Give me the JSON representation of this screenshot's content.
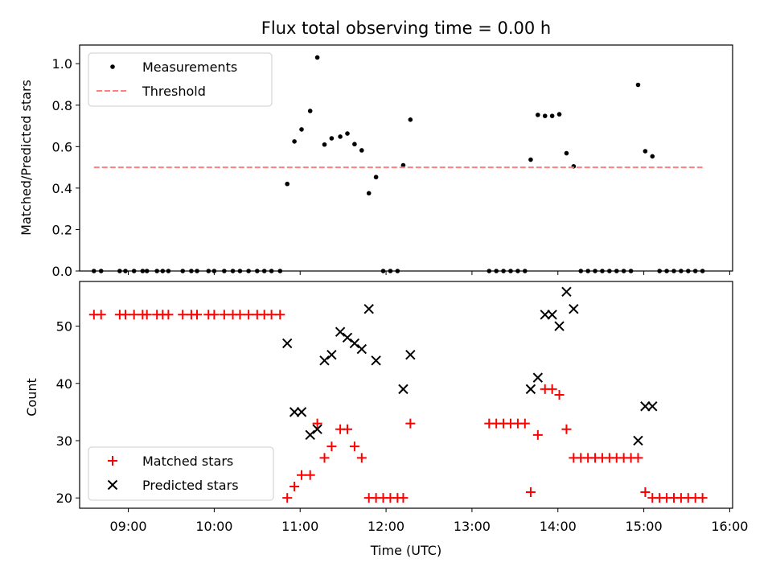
{
  "chart_data": [
    {
      "type": "scatter",
      "title": "Flux total observing time = 0.00 h",
      "xlabel": "",
      "ylabel": "Matched/Predicted stars",
      "xlim": [
        "08:26",
        "16:02"
      ],
      "ylim": [
        0,
        1.09
      ],
      "yticks": [
        "0.0",
        "0.2",
        "0.4",
        "0.6",
        "0.8",
        "1.0"
      ],
      "legend_position": "upper-left",
      "legend": [
        "Measurements",
        "Threshold"
      ],
      "series": [
        {
          "name": "Measurements",
          "marker": "dot",
          "color": "#000000",
          "points": [
            [
              "08:36",
              0
            ],
            [
              "08:41",
              0
            ],
            [
              "08:54",
              0
            ],
            [
              "08:58",
              0
            ],
            [
              "09:04",
              0
            ],
            [
              "09:10",
              0
            ],
            [
              "09:13",
              0
            ],
            [
              "09:20",
              0
            ],
            [
              "09:24",
              0
            ],
            [
              "09:28",
              0
            ],
            [
              "09:38",
              0
            ],
            [
              "09:44",
              0
            ],
            [
              "09:48",
              0
            ],
            [
              "09:56",
              0
            ],
            [
              "10:00",
              0
            ],
            [
              "10:07",
              0
            ],
            [
              "10:13",
              0
            ],
            [
              "10:18",
              0
            ],
            [
              "10:24",
              0
            ],
            [
              "10:30",
              0
            ],
            [
              "10:35",
              0
            ],
            [
              "10:40",
              0
            ],
            [
              "10:46",
              0
            ],
            [
              "10:51",
              0.42
            ],
            [
              "10:56",
              0.625
            ],
            [
              "11:01",
              0.683
            ],
            [
              "11:07",
              0.772
            ],
            [
              "11:12",
              1.03
            ],
            [
              "11:17",
              0.61
            ],
            [
              "11:22",
              0.64
            ],
            [
              "11:28",
              0.648
            ],
            [
              "11:33",
              0.663
            ],
            [
              "11:38",
              0.612
            ],
            [
              "11:43",
              0.582
            ],
            [
              "11:48",
              0.375
            ],
            [
              "11:53",
              0.453
            ],
            [
              "11:58",
              0
            ],
            [
              "12:03",
              0
            ],
            [
              "12:08",
              0
            ],
            [
              "12:12",
              0.51
            ],
            [
              "12:17",
              0.73
            ],
            [
              "13:12",
              0
            ],
            [
              "13:17",
              0
            ],
            [
              "13:22",
              0
            ],
            [
              "13:27",
              0
            ],
            [
              "13:32",
              0
            ],
            [
              "13:37",
              0
            ],
            [
              "13:41",
              0.537
            ],
            [
              "13:46",
              0.753
            ],
            [
              "13:51",
              0.748
            ],
            [
              "13:56",
              0.748
            ],
            [
              "14:01",
              0.756
            ],
            [
              "14:06",
              0.568
            ],
            [
              "14:11",
              0.505
            ],
            [
              "14:16",
              0
            ],
            [
              "14:21",
              0
            ],
            [
              "14:26",
              0
            ],
            [
              "14:31",
              0
            ],
            [
              "14:36",
              0
            ],
            [
              "14:41",
              0
            ],
            [
              "14:46",
              0
            ],
            [
              "14:51",
              0
            ],
            [
              "14:56",
              0.898
            ],
            [
              "15:01",
              0.578
            ],
            [
              "15:06",
              0.553
            ],
            [
              "15:11",
              0
            ],
            [
              "15:16",
              0
            ],
            [
              "15:21",
              0
            ],
            [
              "15:26",
              0
            ],
            [
              "15:31",
              0
            ],
            [
              "15:36",
              0
            ],
            [
              "15:41",
              0
            ]
          ]
        },
        {
          "name": "Threshold",
          "style": "dashed-line",
          "color": "#ff7f7f",
          "points": [
            [
              "08:36",
              0.5
            ],
            [
              "15:41",
              0.5
            ]
          ]
        }
      ]
    },
    {
      "type": "scatter",
      "title": "",
      "xlabel": "Time (UTC)",
      "ylabel": "Count",
      "xlim": [
        "08:26",
        "16:02"
      ],
      "ylim": [
        18.2,
        57.8
      ],
      "xticks": [
        "09:00",
        "10:00",
        "11:00",
        "12:00",
        "13:00",
        "14:00",
        "15:00",
        "16:00"
      ],
      "yticks": [
        "20",
        "30",
        "40",
        "50"
      ],
      "legend_position": "lower-left",
      "legend": [
        "Matched stars",
        "Predicted stars"
      ],
      "series": [
        {
          "name": "Matched stars",
          "marker": "plus",
          "color": "#ff0000",
          "points": [
            [
              "08:36",
              52
            ],
            [
              "08:41",
              52
            ],
            [
              "08:54",
              52
            ],
            [
              "08:58",
              52
            ],
            [
              "09:04",
              52
            ],
            [
              "09:10",
              52
            ],
            [
              "09:13",
              52
            ],
            [
              "09:20",
              52
            ],
            [
              "09:24",
              52
            ],
            [
              "09:28",
              52
            ],
            [
              "09:38",
              52
            ],
            [
              "09:44",
              52
            ],
            [
              "09:48",
              52
            ],
            [
              "09:56",
              52
            ],
            [
              "10:00",
              52
            ],
            [
              "10:07",
              52
            ],
            [
              "10:13",
              52
            ],
            [
              "10:18",
              52
            ],
            [
              "10:24",
              52
            ],
            [
              "10:30",
              52
            ],
            [
              "10:35",
              52
            ],
            [
              "10:40",
              52
            ],
            [
              "10:46",
              52
            ],
            [
              "10:51",
              20
            ],
            [
              "10:56",
              22
            ],
            [
              "11:01",
              24
            ],
            [
              "11:07",
              24
            ],
            [
              "11:12",
              33
            ],
            [
              "11:17",
              27
            ],
            [
              "11:22",
              29
            ],
            [
              "11:28",
              32
            ],
            [
              "11:33",
              32
            ],
            [
              "11:38",
              29
            ],
            [
              "11:43",
              27
            ],
            [
              "11:48",
              20
            ],
            [
              "11:53",
              20
            ],
            [
              "11:58",
              20
            ],
            [
              "12:03",
              20
            ],
            [
              "12:08",
              20
            ],
            [
              "12:12",
              20
            ],
            [
              "12:17",
              33
            ],
            [
              "13:12",
              33
            ],
            [
              "13:17",
              33
            ],
            [
              "13:22",
              33
            ],
            [
              "13:27",
              33
            ],
            [
              "13:32",
              33
            ],
            [
              "13:37",
              33
            ],
            [
              "13:41",
              21
            ],
            [
              "13:46",
              31
            ],
            [
              "13:51",
              39
            ],
            [
              "13:56",
              39
            ],
            [
              "14:01",
              38
            ],
            [
              "14:06",
              32
            ],
            [
              "14:11",
              27
            ],
            [
              "14:16",
              27
            ],
            [
              "14:21",
              27
            ],
            [
              "14:26",
              27
            ],
            [
              "14:31",
              27
            ],
            [
              "14:36",
              27
            ],
            [
              "14:41",
              27
            ],
            [
              "14:46",
              27
            ],
            [
              "14:51",
              27
            ],
            [
              "14:56",
              27
            ],
            [
              "15:01",
              21
            ],
            [
              "15:06",
              20
            ],
            [
              "15:11",
              20
            ],
            [
              "15:16",
              20
            ],
            [
              "15:21",
              20
            ],
            [
              "15:26",
              20
            ],
            [
              "15:31",
              20
            ],
            [
              "15:36",
              20
            ],
            [
              "15:41",
              20
            ]
          ]
        },
        {
          "name": "Predicted stars",
          "marker": "x",
          "color": "#000000",
          "points": [
            [
              "10:51",
              47
            ],
            [
              "10:56",
              35
            ],
            [
              "11:01",
              35
            ],
            [
              "11:07",
              31
            ],
            [
              "11:12",
              32
            ],
            [
              "11:17",
              44
            ],
            [
              "11:22",
              45
            ],
            [
              "11:28",
              49
            ],
            [
              "11:33",
              48
            ],
            [
              "11:38",
              47
            ],
            [
              "11:43",
              46
            ],
            [
              "11:48",
              53
            ],
            [
              "11:53",
              44
            ],
            [
              "12:12",
              39
            ],
            [
              "12:17",
              45
            ],
            [
              "13:41",
              39
            ],
            [
              "13:46",
              41
            ],
            [
              "13:51",
              52
            ],
            [
              "13:56",
              52
            ],
            [
              "14:01",
              50
            ],
            [
              "14:06",
              56
            ],
            [
              "14:11",
              53
            ],
            [
              "14:56",
              30
            ],
            [
              "15:01",
              36
            ],
            [
              "15:06",
              36
            ]
          ]
        }
      ]
    }
  ]
}
